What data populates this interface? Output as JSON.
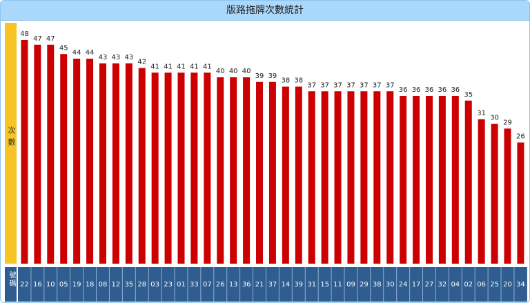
{
  "page": {
    "title": "版路拖牌次數統計"
  },
  "chart_data": {
    "type": "bar",
    "title": "版路拖牌次數統計",
    "ylabel": "次數",
    "xlabel": "號碼",
    "categories": [
      "22",
      "16",
      "10",
      "05",
      "19",
      "18",
      "08",
      "12",
      "35",
      "28",
      "03",
      "23",
      "01",
      "33",
      "07",
      "26",
      "13",
      "36",
      "21",
      "37",
      "14",
      "39",
      "31",
      "15",
      "11",
      "09",
      "29",
      "38",
      "30",
      "24",
      "17",
      "27",
      "32",
      "04",
      "02",
      "06",
      "25",
      "20",
      "34"
    ],
    "values": [
      48,
      47,
      47,
      45,
      44,
      44,
      43,
      43,
      43,
      42,
      41,
      41,
      41,
      41,
      41,
      40,
      40,
      40,
      39,
      39,
      38,
      38,
      37,
      37,
      37,
      37,
      37,
      37,
      37,
      36,
      36,
      36,
      36,
      36,
      35,
      31,
      30,
      29,
      26
    ],
    "ylim": [
      0,
      48
    ],
    "grid": false,
    "colors": {
      "bar": "#cc0000",
      "header": "#a9d8fb",
      "ylabel_bg": "#f7c425",
      "category_bg": "#2f5d90",
      "category_text": "#ffffff"
    }
  }
}
